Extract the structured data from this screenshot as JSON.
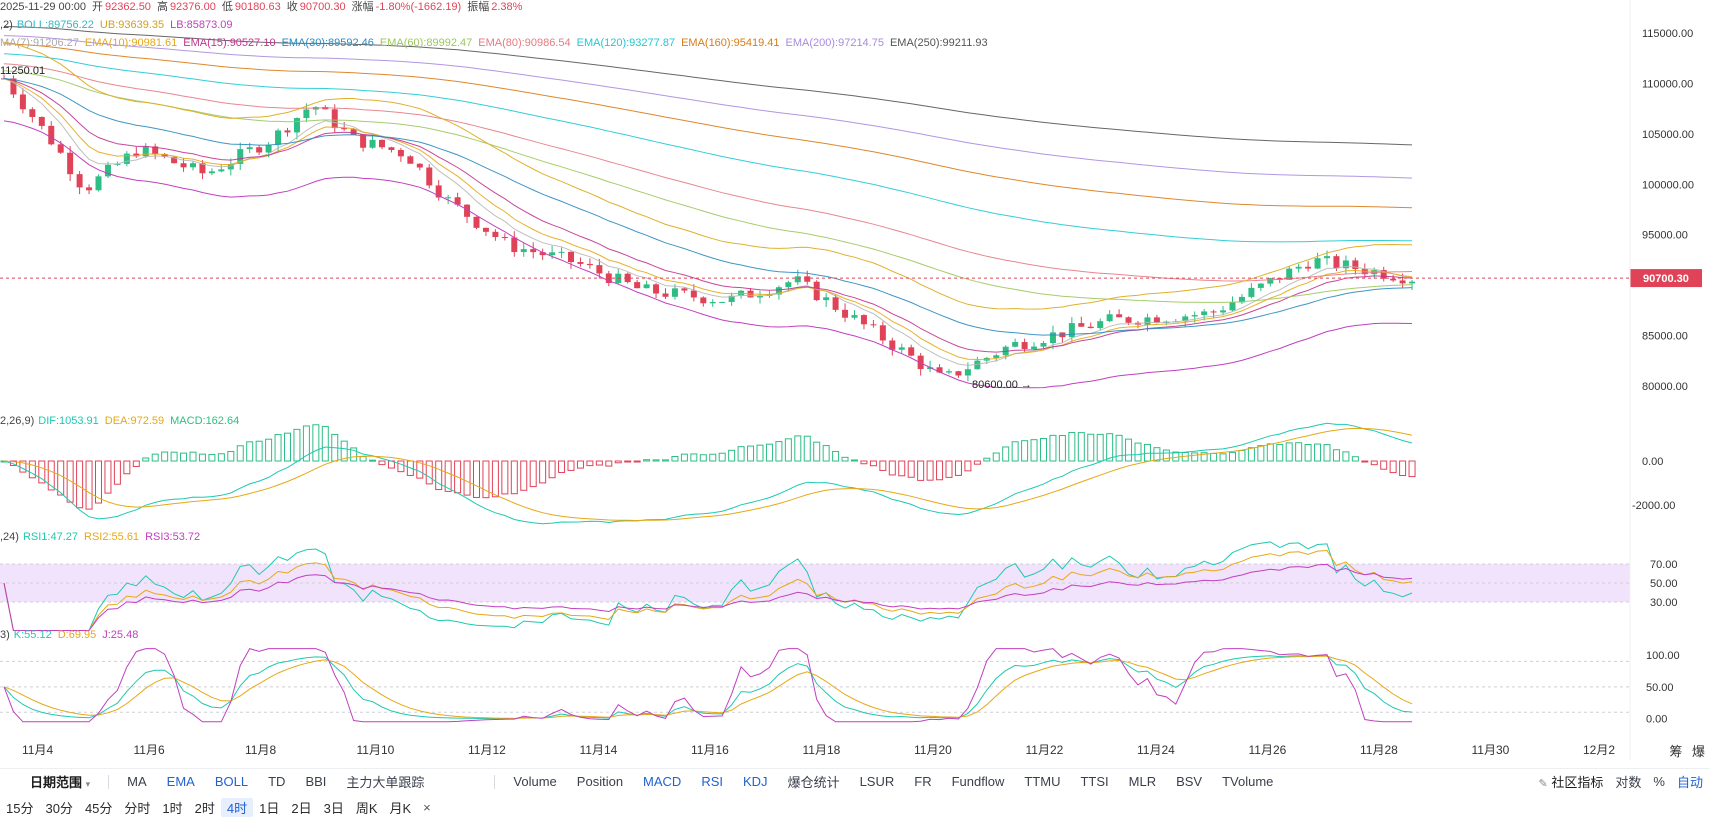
{
  "header": {
    "ohlc": [
      "2025-11-29 00:00",
      "开",
      "92362.50",
      "高",
      "92376.00",
      "低",
      "90180.63",
      "收",
      "90700.30",
      "涨幅",
      "-1.80%(-1662.19)",
      "振幅",
      "2.38%"
    ],
    "boll": {
      "prefix": ",2)",
      "boll": "BOLL:89756.22",
      "ub": "UB:93639.35",
      "lb": "LB:85873.09"
    },
    "ema": [
      "MA(7):91206.27",
      "EMA(10):90981.61",
      "EMA(15):90527.10",
      "EMA(30):89592.46",
      "EMA(60):89992.47",
      "EMA(80):90986.54",
      "EMA(120):93277.87",
      "EMA(160):95419.41",
      "EMA(200):97214.75",
      "EMA(250):99211.93"
    ],
    "high_marker": "11250.01",
    "low_marker": "80600.00"
  },
  "price_axis": [
    "115000.00",
    "110000.00",
    "105000.00",
    "100000.00",
    "95000.00",
    "90700.30",
    "85000.00",
    "80000.00"
  ],
  "current_price": "90700.30",
  "macd": {
    "prefix": "2,26,9)",
    "dif": "DIF:1053.91",
    "dea": "DEA:972.59",
    "macd": "MACD:162.64",
    "axis": [
      "0.00",
      "-2000.00"
    ]
  },
  "rsi": {
    "prefix": ",24)",
    "rsi1": "RSI1:47.27",
    "rsi2": "RSI2:55.61",
    "rsi3": "RSI3:53.72",
    "axis": [
      "70.00",
      "50.00",
      "30.00"
    ]
  },
  "kdj": {
    "prefix": "3)",
    "k": "K:55.12",
    "d": "D:69.95",
    "j": "J:25.48",
    "axis": [
      "100.00",
      "50.00",
      "0.00"
    ]
  },
  "date_axis": [
    "11月4",
    "11月6",
    "11月8",
    "11月10",
    "11月12",
    "11月14",
    "11月16",
    "11月18",
    "11月20",
    "11月22",
    "11月24",
    "11月26",
    "11月28",
    "11月30",
    "12月2"
  ],
  "corner": [
    "筹",
    "爆"
  ],
  "toolbar": {
    "date_range": "日期范围",
    "main_indicators": [
      "MA",
      "EMA",
      "BOLL",
      "TD",
      "BBI",
      "主力大单跟踪"
    ],
    "sub_indicators": [
      "Volume",
      "Position",
      "MACD",
      "RSI",
      "KDJ",
      "爆仓统计",
      "LSUR",
      "FR",
      "Fundflow",
      "TTMU",
      "TTSI",
      "MLR",
      "BSV",
      "TVolume"
    ],
    "community": "社区指标",
    "log": "对数",
    "percent": "%",
    "auto": "自动"
  },
  "timeframes": [
    "15分",
    "30分",
    "45分",
    "分时",
    "1时",
    "2时",
    "4时",
    "1日",
    "2日",
    "3日",
    "周K",
    "月K"
  ],
  "active_timeframe": "4时",
  "close_glyph": "×",
  "colors": {
    "up": "#2ebd85",
    "down": "#e04358",
    "ub": "#e0b02c",
    "boll": "#2fb8c4",
    "lb": "#c23fc0",
    "price_tag": "#e04358",
    "rsi_band": "#f1e3fb"
  }
}
